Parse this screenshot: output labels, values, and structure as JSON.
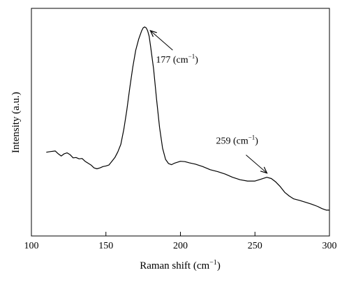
{
  "chart_data": {
    "type": "line",
    "title": "",
    "xlabel": "Raman shift (cm",
    "xlabel_sup": "−1",
    "xlabel_tail": ")",
    "ylabel": "Intensity (a.u.)",
    "xlim": [
      100,
      300
    ],
    "xticks": [
      100,
      150,
      200,
      250,
      300
    ],
    "y_ticks_shown": false,
    "grid": false,
    "legend": "none",
    "colors": {
      "line": "#000000",
      "axis": "#000000"
    },
    "series": [
      {
        "x": [
          110,
          113,
          116,
          118,
          120,
          122,
          124,
          126,
          128,
          130,
          132,
          134,
          136,
          138,
          140,
          142,
          144,
          146,
          148,
          150,
          152,
          154,
          156,
          158,
          160,
          162,
          164,
          166,
          168,
          170,
          172,
          174,
          175,
          176,
          177,
          178,
          179,
          180,
          182,
          184,
          186,
          188,
          190,
          192,
          194,
          196,
          198,
          200,
          203,
          206,
          210,
          215,
          220,
          225,
          230,
          235,
          240,
          245,
          250,
          254,
          258,
          261,
          264,
          267,
          270,
          273,
          276,
          280,
          284,
          288,
          292,
          295,
          298,
          300
        ],
        "y": [
          0.338,
          0.342,
          0.345,
          0.33,
          0.318,
          0.33,
          0.335,
          0.325,
          0.308,
          0.31,
          0.303,
          0.305,
          0.29,
          0.28,
          0.27,
          0.255,
          0.25,
          0.255,
          0.262,
          0.265,
          0.27,
          0.29,
          0.31,
          0.34,
          0.38,
          0.46,
          0.56,
          0.68,
          0.79,
          0.88,
          0.94,
          0.985,
          1.0,
          1.005,
          1.0,
          0.985,
          0.955,
          0.9,
          0.78,
          0.62,
          0.47,
          0.36,
          0.3,
          0.278,
          0.272,
          0.28,
          0.285,
          0.29,
          0.288,
          0.282,
          0.275,
          0.262,
          0.245,
          0.235,
          0.222,
          0.205,
          0.192,
          0.185,
          0.185,
          0.195,
          0.205,
          0.198,
          0.18,
          0.155,
          0.125,
          0.105,
          0.09,
          0.082,
          0.072,
          0.062,
          0.05,
          0.038,
          0.03,
          0.03
        ]
      }
    ],
    "annotations": [
      {
        "label": "177 (cm",
        "sup": "−1",
        "tail": ")",
        "peak_x": 177,
        "peak_y": 1.0
      },
      {
        "label": "259 (cm",
        "sup": "−1",
        "tail": ")",
        "peak_x": 259,
        "peak_y": 0.205
      }
    ]
  }
}
